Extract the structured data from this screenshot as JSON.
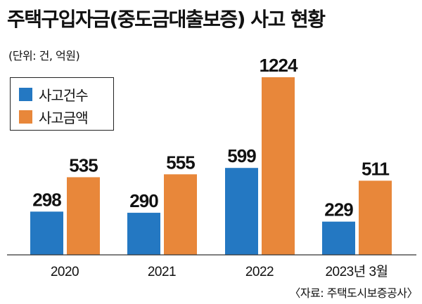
{
  "title": "주택구입자금(중도금대출보증) 사고 현황",
  "unit_label": "(단위: 건, 억원)",
  "source": "〈자료: 주택도시보증공사〉",
  "chart_data": {
    "type": "bar",
    "categories": [
      "2020",
      "2021",
      "2022",
      "2023년 3월"
    ],
    "series": [
      {
        "name": "사고건수",
        "color": "#2478c2",
        "values": [
          298,
          290,
          599,
          229
        ]
      },
      {
        "name": "사고금액",
        "color": "#e8873a",
        "values": [
          535,
          555,
          1224,
          511
        ]
      }
    ],
    "title": "주택구입자금(중도금대출보증) 사고 현황",
    "xlabel": "",
    "ylabel": "",
    "ylim": [
      0,
      1300
    ],
    "grid": false,
    "legend": "top-left"
  }
}
